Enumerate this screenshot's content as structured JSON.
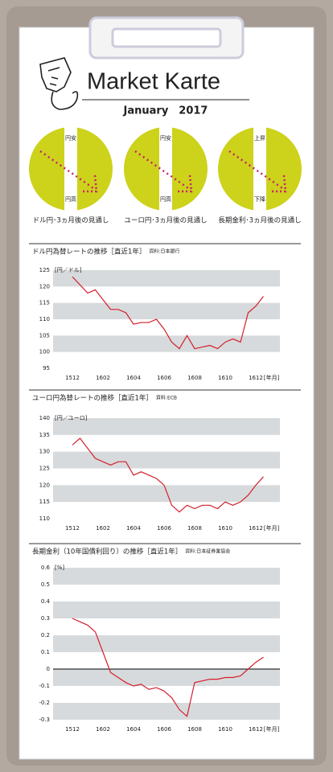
{
  "header": {
    "title": "Market Karte",
    "date": "January　2017"
  },
  "dials": [
    {
      "top": "円安",
      "bottom": "円高",
      "caption": "ドル円･3ヵ月後の見通し"
    },
    {
      "top": "円安",
      "bottom": "円高",
      "caption": "ユーロ円･3ヵ月後の見通し"
    },
    {
      "top": "上昇",
      "bottom": "下降",
      "caption": "長期金利･3ヵ月後の見通し"
    }
  ],
  "chart_data": [
    {
      "type": "line",
      "title": "ドル円為替レートの推移［直近1年］",
      "source": "資料:日本銀行",
      "y_unit": "[円／ドル]",
      "x_unit": "[年月]",
      "categories": [
        "1512",
        null,
        null,
        null,
        "1602",
        null,
        null,
        null,
        "1604",
        null,
        null,
        null,
        "1606",
        null,
        null,
        null,
        "1608",
        null,
        null,
        null,
        "1610",
        null,
        null,
        null,
        "1612",
        null
      ],
      "series": [
        {
          "name": "ドル円",
          "color": "#d41f2c",
          "values": [
            123,
            120.5,
            118,
            119,
            116,
            113,
            113,
            112,
            108.5,
            109,
            109,
            110,
            107,
            103,
            101,
            105,
            101,
            101.5,
            102,
            101,
            103,
            104,
            103,
            112,
            114,
            117
          ]
        }
      ],
      "ylim": [
        95,
        125
      ],
      "yticks": [
        125,
        120,
        115,
        110,
        105,
        100,
        95
      ],
      "bands": true
    },
    {
      "type": "line",
      "title": "ユーロ円為替レートの推移［直近1年］",
      "source": "資料:ECB",
      "y_unit": "[円／ユーロ]",
      "x_unit": "[年月]",
      "categories": [
        "1512",
        null,
        null,
        null,
        "1602",
        null,
        null,
        null,
        "1604",
        null,
        null,
        null,
        "1606",
        null,
        null,
        null,
        "1608",
        null,
        null,
        null,
        "1610",
        null,
        null,
        null,
        "1612",
        null
      ],
      "series": [
        {
          "name": "ユーロ円",
          "color": "#d41f2c",
          "values": [
            132,
            134,
            131,
            128,
            127,
            126,
            127,
            127,
            123,
            124,
            123,
            122,
            120,
            114,
            112,
            114,
            113,
            114,
            114,
            113,
            115,
            114,
            115,
            117,
            120,
            122.5
          ]
        }
      ],
      "ylim": [
        110,
        140
      ],
      "yticks": [
        140,
        135,
        130,
        125,
        120,
        115,
        110
      ],
      "bands": true
    },
    {
      "type": "line",
      "title": "長期金利（10年国債利回り）の推移［直近1年］",
      "source": "資料:日本証券業協会",
      "y_unit": "[%]",
      "x_unit": "[年月]",
      "categories": [
        "1512",
        null,
        null,
        null,
        "1602",
        null,
        null,
        null,
        "1604",
        null,
        null,
        null,
        "1606",
        null,
        null,
        null,
        "1608",
        null,
        null,
        null,
        "1610",
        null,
        null,
        null,
        "1612",
        null
      ],
      "series": [
        {
          "name": "長期金利",
          "color": "#d41f2c",
          "values": [
            0.3,
            0.28,
            0.26,
            0.22,
            0.1,
            -0.02,
            -0.05,
            -0.08,
            -0.1,
            -0.09,
            -0.12,
            -0.11,
            -0.13,
            -0.17,
            -0.24,
            -0.28,
            -0.08,
            -0.07,
            -0.06,
            -0.06,
            -0.05,
            -0.05,
            -0.04,
            0.0,
            0.04,
            0.07
          ]
        }
      ],
      "ylim": [
        -0.3,
        0.6
      ],
      "yticks": [
        0.6,
        0.5,
        0.4,
        0.3,
        0.2,
        0.1,
        0,
        -0.1,
        -0.2,
        -0.3
      ],
      "bands": true,
      "zero_line": true
    }
  ]
}
